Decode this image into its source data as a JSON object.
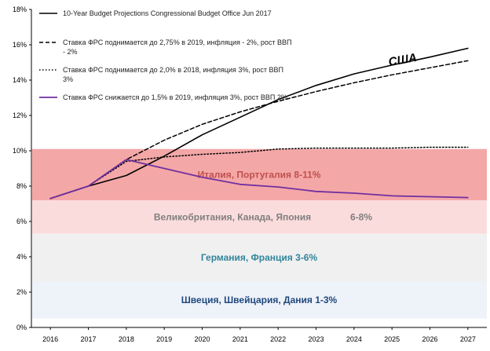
{
  "colors": {
    "band_italy": "#f4a7a7",
    "band_uk": "#fbdcdc",
    "band_germany": "#f0f0f0",
    "band_sweden": "#eef2f9",
    "label_italy": "#c0504d",
    "label_uk": "#7f7f7f",
    "label_germany": "#31859c",
    "label_sweden": "#1f497d",
    "series_cbo": "#000000",
    "series_275": "#000000",
    "series_20": "#000000",
    "series_15": "#7030a0"
  },
  "chart_data": {
    "type": "line",
    "x": [
      2016,
      2017,
      2018,
      2019,
      2020,
      2021,
      2022,
      2023,
      2024,
      2025,
      2026,
      2027
    ],
    "x_tick_labels": [
      "2016",
      "2017",
      "2018",
      "2019",
      "2020",
      "2021",
      "2022",
      "2023",
      "2024",
      "2025",
      "2026",
      "2027"
    ],
    "ylim": [
      0,
      18
    ],
    "y_ticks": [
      0,
      2,
      4,
      6,
      8,
      10,
      12,
      14,
      16,
      18
    ],
    "y_tick_labels": [
      "0%",
      "2%",
      "4%",
      "6%",
      "8%",
      "10%",
      "12%",
      "14%",
      "16%",
      "18%"
    ],
    "grid": false,
    "legend_position": "top-left",
    "series": [
      {
        "name": "10-Year Budget Projections Congressional Budget Office Jun 2017",
        "style": "solid",
        "values": [
          7.3,
          8.0,
          8.6,
          9.7,
          10.9,
          11.9,
          12.9,
          13.7,
          14.35,
          14.85,
          15.3,
          15.8
        ]
      },
      {
        "name": "Ставка ФРС поднимается до 2,75% в 2019, инфляция - 2%, рост ВВП - 2%",
        "style": "dashed",
        "values": [
          7.3,
          8.0,
          9.5,
          10.6,
          11.5,
          12.2,
          12.8,
          13.35,
          13.85,
          14.3,
          14.7,
          15.1
        ]
      },
      {
        "name": "Ставка ФРС поднимается до 2,0% в 2018, инфляция 3%, рост ВВП 3%",
        "style": "dotted",
        "values": [
          7.3,
          8.0,
          9.4,
          9.65,
          9.8,
          9.9,
          10.1,
          10.15,
          10.15,
          10.15,
          10.2,
          10.2
        ]
      },
      {
        "name": "Ставка ФРС снижается до 1,5% в 2019, инфляция 3%, рост ВВП 2%",
        "style": "solid",
        "values": [
          7.3,
          8.0,
          9.5,
          9.0,
          8.5,
          8.1,
          7.95,
          7.7,
          7.6,
          7.45,
          7.4,
          7.35
        ]
      }
    ],
    "bands": [
      {
        "label": "Италия, Португалия 8-11%",
        "from": 7.2,
        "to": 10.1
      },
      {
        "label": "Великобритания, Канада, Япония",
        "label_extra": "6-8%",
        "from": 5.3,
        "to": 7.2
      },
      {
        "label": "Германия, Франция 3-6%",
        "from": 2.6,
        "to": 5.3
      },
      {
        "label": "Швеция, Швейцария, Дания 1-3%",
        "from": 0.5,
        "to": 2.6
      }
    ],
    "annotations": [
      {
        "text": "США",
        "x": 2025.3,
        "y": 14.8
      }
    ]
  }
}
